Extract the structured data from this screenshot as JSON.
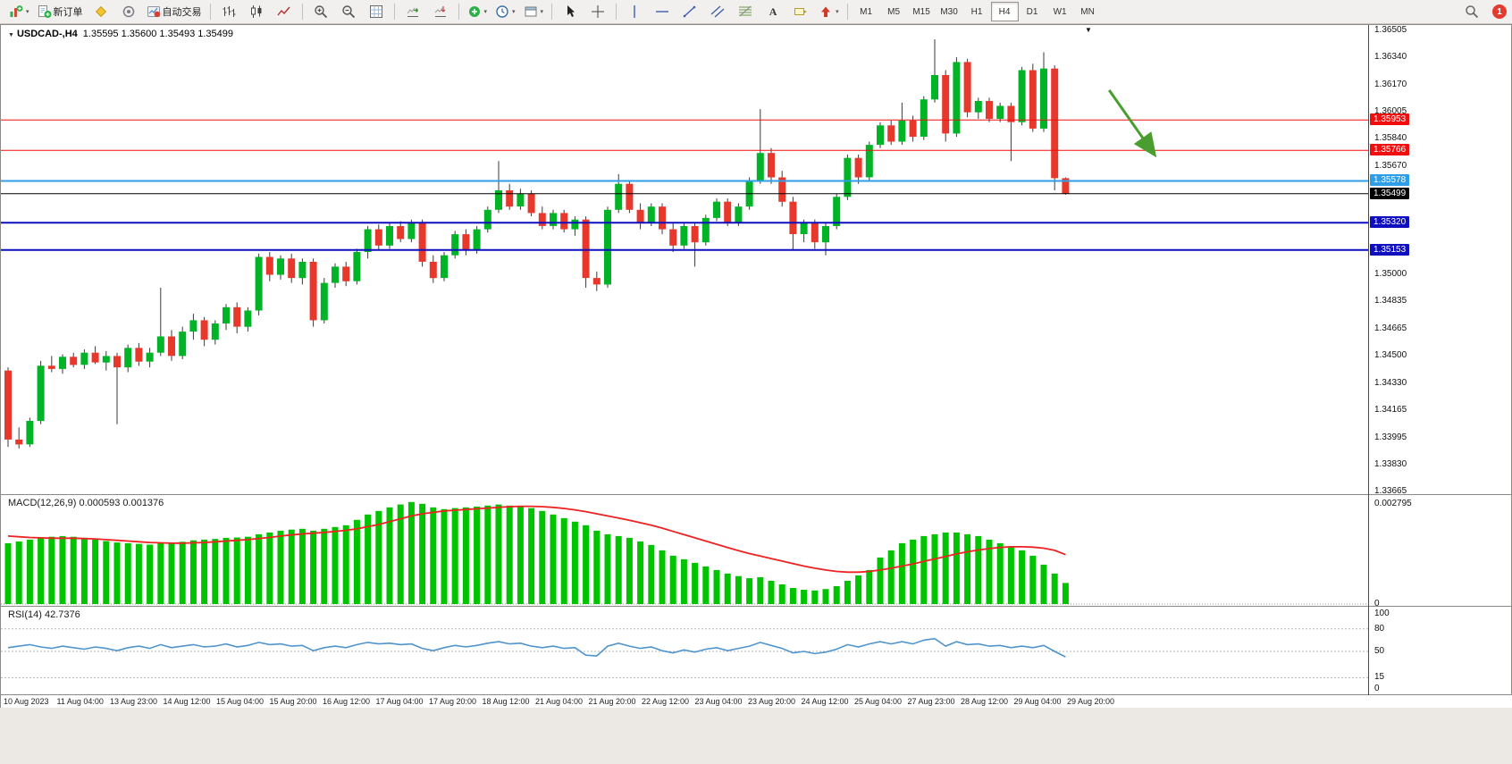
{
  "toolbar": {
    "new_order_label": "新订单",
    "autotrading_label": "自动交易",
    "timeframes": [
      "M1",
      "M5",
      "M15",
      "M30",
      "H1",
      "H4",
      "D1",
      "W1",
      "MN"
    ],
    "active_timeframe": "H4",
    "notification_count": "1"
  },
  "chart": {
    "title_symbol": "USDCAD-,H4",
    "title_quotes": "1.35595 1.35600 1.35493 1.35499",
    "collapse_icon": "▼",
    "shift_marker": "▼",
    "price_axis_ticks": [
      "1.36505",
      "1.36340",
      "1.36170",
      "1.36005",
      "1.35840",
      "1.35670",
      "1.35000",
      "1.34835",
      "1.34665",
      "1.34500",
      "1.34330",
      "1.34165",
      "1.33995",
      "1.33830",
      "1.33665"
    ],
    "time_axis_labels": [
      "10 Aug 2023",
      "11 Aug 04:00",
      "13 Aug 23:00",
      "14 Aug 12:00",
      "15 Aug 04:00",
      "15 Aug 20:00",
      "16 Aug 12:00",
      "17 Aug 04:00",
      "17 Aug 20:00",
      "18 Aug 12:00",
      "21 Aug 04:00",
      "21 Aug 20:00",
      "22 Aug 12:00",
      "23 Aug 04:00",
      "23 Aug 20:00",
      "24 Aug 12:00",
      "25 Aug 04:00",
      "27 Aug 23:00",
      "28 Aug 12:00",
      "29 Aug 04:00",
      "29 Aug 20:00"
    ]
  },
  "macd": {
    "label": "MACD(12,26,9) 0.000593 0.001376",
    "axis_max": "0.002795",
    "axis_zero": "0"
  },
  "rsi": {
    "label": "RSI(14) 42.7376",
    "axis_ticks": [
      "100",
      "80",
      "50",
      "15",
      "0"
    ],
    "levels": [
      80,
      50,
      15
    ]
  },
  "chart_data": {
    "type": "candlestick",
    "symbol": "USDCAD",
    "period": "H4",
    "last_quote": {
      "open": 1.35595,
      "high": 1.356,
      "low": 1.35493,
      "close": 1.35499
    },
    "price_range": {
      "top": 1.36538,
      "bottom": 1.33649
    },
    "hlines": [
      {
        "price": 1.35953,
        "color": "#f10e0e",
        "width": 1
      },
      {
        "price": 1.35766,
        "color": "#f10e0e",
        "width": 1
      },
      {
        "price": 1.35578,
        "color": "#2e9fe6",
        "width": 2
      },
      {
        "price": 1.35499,
        "color": "#000000",
        "width": 1
      },
      {
        "price": 1.3532,
        "color": "#0f0fc0",
        "width": 2
      },
      {
        "price": 1.35153,
        "color": "#0f0fc0",
        "width": 2
      }
    ],
    "arrow_annotation": {
      "from": {
        "index": 101,
        "price": 1.36137
      },
      "to": {
        "index": 105.2,
        "price": 1.35736
      },
      "color": "#4a9e2f"
    },
    "ohlc": [
      [
        1.3441,
        1.3443,
        1.3394,
        1.33985
      ],
      [
        1.33985,
        1.3406,
        1.3393,
        1.33955
      ],
      [
        1.33955,
        1.3412,
        1.3394,
        1.341
      ],
      [
        1.341,
        1.3447,
        1.3408,
        1.3444
      ],
      [
        1.3444,
        1.345,
        1.344,
        1.3442
      ],
      [
        1.3442,
        1.3451,
        1.3439,
        1.34495
      ],
      [
        1.34495,
        1.3452,
        1.3443,
        1.34445
      ],
      [
        1.34445,
        1.3454,
        1.3442,
        1.3452
      ],
      [
        1.3452,
        1.3456,
        1.3445,
        1.3446
      ],
      [
        1.3446,
        1.3453,
        1.3441,
        1.345
      ],
      [
        1.345,
        1.3452,
        1.3408,
        1.3443
      ],
      [
        1.3443,
        1.3457,
        1.344,
        1.3455
      ],
      [
        1.3455,
        1.3458,
        1.3444,
        1.34465
      ],
      [
        1.34465,
        1.3455,
        1.3443,
        1.3452
      ],
      [
        1.3452,
        1.3492,
        1.345,
        1.3462
      ],
      [
        1.3462,
        1.3466,
        1.3447,
        1.345
      ],
      [
        1.345,
        1.3468,
        1.3448,
        1.3465
      ],
      [
        1.3465,
        1.3476,
        1.346,
        1.3472
      ],
      [
        1.3472,
        1.3474,
        1.3456,
        1.346
      ],
      [
        1.346,
        1.3472,
        1.3457,
        1.347
      ],
      [
        1.347,
        1.3482,
        1.3466,
        1.348
      ],
      [
        1.348,
        1.3483,
        1.3464,
        1.3468
      ],
      [
        1.3468,
        1.348,
        1.3465,
        1.3478
      ],
      [
        1.3478,
        1.3513,
        1.3475,
        1.3511
      ],
      [
        1.3511,
        1.3514,
        1.3496,
        1.35
      ],
      [
        1.35,
        1.3512,
        1.3497,
        1.351
      ],
      [
        1.351,
        1.3513,
        1.3495,
        1.3498
      ],
      [
        1.3498,
        1.351,
        1.3494,
        1.3508
      ],
      [
        1.3508,
        1.351,
        1.3468,
        1.3472
      ],
      [
        1.3472,
        1.3498,
        1.347,
        1.3495
      ],
      [
        1.3495,
        1.3507,
        1.3492,
        1.3505
      ],
      [
        1.3505,
        1.3508,
        1.3493,
        1.3496
      ],
      [
        1.3496,
        1.3516,
        1.3494,
        1.3514
      ],
      [
        1.3514,
        1.353,
        1.351,
        1.3528
      ],
      [
        1.3528,
        1.3531,
        1.3515,
        1.3518
      ],
      [
        1.3518,
        1.3532,
        1.3516,
        1.353
      ],
      [
        1.353,
        1.3533,
        1.352,
        1.3522
      ],
      [
        1.3522,
        1.3534,
        1.352,
        1.3532
      ],
      [
        1.3532,
        1.3534,
        1.3505,
        1.3508
      ],
      [
        1.3508,
        1.3512,
        1.3495,
        1.3498
      ],
      [
        1.3498,
        1.3514,
        1.3496,
        1.3512
      ],
      [
        1.3512,
        1.3527,
        1.351,
        1.3525
      ],
      [
        1.3525,
        1.3528,
        1.3512,
        1.3515
      ],
      [
        1.3515,
        1.353,
        1.3513,
        1.3528
      ],
      [
        1.3528,
        1.3542,
        1.3526,
        1.354
      ],
      [
        1.354,
        1.357,
        1.3538,
        1.3552
      ],
      [
        1.3552,
        1.3556,
        1.354,
        1.3542
      ],
      [
        1.3542,
        1.3553,
        1.354,
        1.355
      ],
      [
        1.355,
        1.3552,
        1.3536,
        1.3538
      ],
      [
        1.3538,
        1.3542,
        1.3528,
        1.353
      ],
      [
        1.353,
        1.354,
        1.3528,
        1.3538
      ],
      [
        1.3538,
        1.354,
        1.3526,
        1.3528
      ],
      [
        1.3528,
        1.3536,
        1.3524,
        1.3534
      ],
      [
        1.3534,
        1.3536,
        1.3492,
        1.3498
      ],
      [
        1.3498,
        1.3502,
        1.349,
        1.3494
      ],
      [
        1.3494,
        1.3542,
        1.3492,
        1.354
      ],
      [
        1.354,
        1.3562,
        1.3538,
        1.3556
      ],
      [
        1.3556,
        1.3558,
        1.3538,
        1.354
      ],
      [
        1.354,
        1.3544,
        1.3528,
        1.3532
      ],
      [
        1.3532,
        1.3544,
        1.353,
        1.3542
      ],
      [
        1.3542,
        1.3544,
        1.3525,
        1.3528
      ],
      [
        1.3528,
        1.3532,
        1.3514,
        1.3518
      ],
      [
        1.3518,
        1.3532,
        1.3516,
        1.353
      ],
      [
        1.353,
        1.3532,
        1.3505,
        1.352
      ],
      [
        1.352,
        1.3537,
        1.3518,
        1.3535
      ],
      [
        1.3535,
        1.3547,
        1.3533,
        1.3545
      ],
      [
        1.3545,
        1.3547,
        1.353,
        1.3532
      ],
      [
        1.3532,
        1.3544,
        1.353,
        1.3542
      ],
      [
        1.3542,
        1.356,
        1.354,
        1.3558
      ],
      [
        1.3558,
        1.3602,
        1.3556,
        1.3575
      ],
      [
        1.3575,
        1.3578,
        1.3556,
        1.356
      ],
      [
        1.356,
        1.3564,
        1.3542,
        1.3545
      ],
      [
        1.3545,
        1.3548,
        1.3515,
        1.3525
      ],
      [
        1.3525,
        1.3534,
        1.352,
        1.3532
      ],
      [
        1.3532,
        1.3534,
        1.3516,
        1.352
      ],
      [
        1.352,
        1.3532,
        1.3512,
        1.353
      ],
      [
        1.353,
        1.355,
        1.3528,
        1.3548
      ],
      [
        1.3548,
        1.3574,
        1.3546,
        1.3572
      ],
      [
        1.3572,
        1.3574,
        1.3556,
        1.356
      ],
      [
        1.356,
        1.3582,
        1.3558,
        1.358
      ],
      [
        1.358,
        1.3594,
        1.3578,
        1.3592
      ],
      [
        1.3592,
        1.3595,
        1.358,
        1.3582
      ],
      [
        1.3582,
        1.3606,
        1.358,
        1.3595
      ],
      [
        1.3595,
        1.3598,
        1.3582,
        1.3585
      ],
      [
        1.3585,
        1.361,
        1.3583,
        1.3608
      ],
      [
        1.3608,
        1.3645,
        1.3606,
        1.3623
      ],
      [
        1.3623,
        1.3626,
        1.3582,
        1.3587
      ],
      [
        1.3587,
        1.3634,
        1.3585,
        1.3631
      ],
      [
        1.3631,
        1.3633,
        1.3597,
        1.36
      ],
      [
        1.36,
        1.3609,
        1.3596,
        1.3607
      ],
      [
        1.3607,
        1.3609,
        1.3594,
        1.3596
      ],
      [
        1.3596,
        1.3606,
        1.3594,
        1.3604
      ],
      [
        1.3604,
        1.3606,
        1.357,
        1.3594
      ],
      [
        1.3594,
        1.3628,
        1.3592,
        1.3626
      ],
      [
        1.3626,
        1.363,
        1.3588,
        1.359
      ],
      [
        1.359,
        1.3637,
        1.3588,
        1.3627
      ],
      [
        1.3627,
        1.3629,
        1.3552,
        1.35595
      ],
      [
        1.35595,
        1.356,
        1.35493,
        1.35499
      ]
    ],
    "macd_axis_max": 0.002795,
    "macd_histogram": [
      0.0017,
      0.00175,
      0.0018,
      0.00185,
      0.00188,
      0.0019,
      0.00188,
      0.00185,
      0.0018,
      0.00176,
      0.00172,
      0.0017,
      0.00168,
      0.00166,
      0.0017,
      0.00172,
      0.00174,
      0.00178,
      0.0018,
      0.00182,
      0.00185,
      0.00186,
      0.00188,
      0.00195,
      0.002,
      0.00205,
      0.00208,
      0.0021,
      0.00205,
      0.0021,
      0.00215,
      0.0022,
      0.00235,
      0.0025,
      0.0026,
      0.0027,
      0.00278,
      0.00285,
      0.0028,
      0.0027,
      0.00265,
      0.00268,
      0.0027,
      0.00272,
      0.00275,
      0.00278,
      0.00275,
      0.00272,
      0.00268,
      0.0026,
      0.0025,
      0.0024,
      0.0023,
      0.0022,
      0.00205,
      0.00195,
      0.0019,
      0.00185,
      0.00175,
      0.00165,
      0.0015,
      0.00135,
      0.00125,
      0.00115,
      0.00105,
      0.00095,
      0.00085,
      0.00078,
      0.00072,
      0.00075,
      0.00065,
      0.00055,
      0.00045,
      0.0004,
      0.00038,
      0.00042,
      0.0005,
      0.00065,
      0.0008,
      0.00095,
      0.0013,
      0.0015,
      0.0017,
      0.0018,
      0.0019,
      0.00195,
      0.002,
      0.002,
      0.00195,
      0.0019,
      0.0018,
      0.0017,
      0.0016,
      0.0015,
      0.00135,
      0.0011,
      0.00085,
      0.00059
    ],
    "macd_signal": [
      0.0019,
      0.00188,
      0.00186,
      0.00185,
      0.00184,
      0.00184,
      0.00184,
      0.00183,
      0.00182,
      0.0018,
      0.00178,
      0.00176,
      0.00174,
      0.00172,
      0.00171,
      0.0017,
      0.0017,
      0.00171,
      0.00172,
      0.00174,
      0.00176,
      0.00178,
      0.0018,
      0.00183,
      0.00186,
      0.0019,
      0.00193,
      0.00196,
      0.00198,
      0.002,
      0.00203,
      0.00206,
      0.0021,
      0.00216,
      0.00222,
      0.0023,
      0.00238,
      0.00246,
      0.00252,
      0.00256,
      0.0026,
      0.00262,
      0.00264,
      0.00266,
      0.00268,
      0.0027,
      0.00272,
      0.00273,
      0.00273,
      0.00272,
      0.0027,
      0.00267,
      0.00263,
      0.00258,
      0.00252,
      0.00246,
      0.0024,
      0.00234,
      0.00227,
      0.0022,
      0.00212,
      0.00203,
      0.00194,
      0.00185,
      0.00176,
      0.00167,
      0.00158,
      0.00149,
      0.00141,
      0.00134,
      0.00127,
      0.0012,
      0.00113,
      0.00106,
      0.001,
      0.00095,
      0.00091,
      0.00089,
      0.00089,
      0.00091,
      0.00095,
      0.001,
      0.00106,
      0.00112,
      0.00119,
      0.00126,
      0.00133,
      0.0014,
      0.00146,
      0.00151,
      0.00155,
      0.00158,
      0.0016,
      0.0016,
      0.00159,
      0.00156,
      0.0015,
      0.00138
    ],
    "rsi_axis": {
      "min": 0,
      "max": 100
    },
    "rsi_values": [
      55,
      57,
      59,
      56,
      54,
      57,
      55,
      53,
      56,
      54,
      51,
      55,
      57,
      54,
      59,
      55,
      57,
      59,
      56,
      57,
      60,
      56,
      58,
      62,
      59,
      60,
      57,
      58,
      51,
      55,
      57,
      55,
      59,
      62,
      60,
      61,
      59,
      60,
      54,
      51,
      55,
      58,
      56,
      58,
      61,
      63,
      60,
      61,
      57,
      55,
      57,
      54,
      55,
      45,
      44,
      57,
      61,
      57,
      54,
      56,
      51,
      48,
      52,
      49,
      53,
      55,
      51,
      54,
      57,
      62,
      58,
      54,
      48,
      50,
      47,
      49,
      53,
      59,
      56,
      60,
      63,
      60,
      63,
      60,
      65,
      67,
      57,
      63,
      59,
      60,
      57,
      58,
      55,
      57,
      55,
      58,
      50,
      42.74
    ],
    "colors": {
      "bull": "#00b327",
      "bear": "#e8382c",
      "wick": "#3a3a3a",
      "macd_hist": "#00c400",
      "macd_signal": "#ee2222",
      "rsi_line": "#4f94cd"
    }
  }
}
